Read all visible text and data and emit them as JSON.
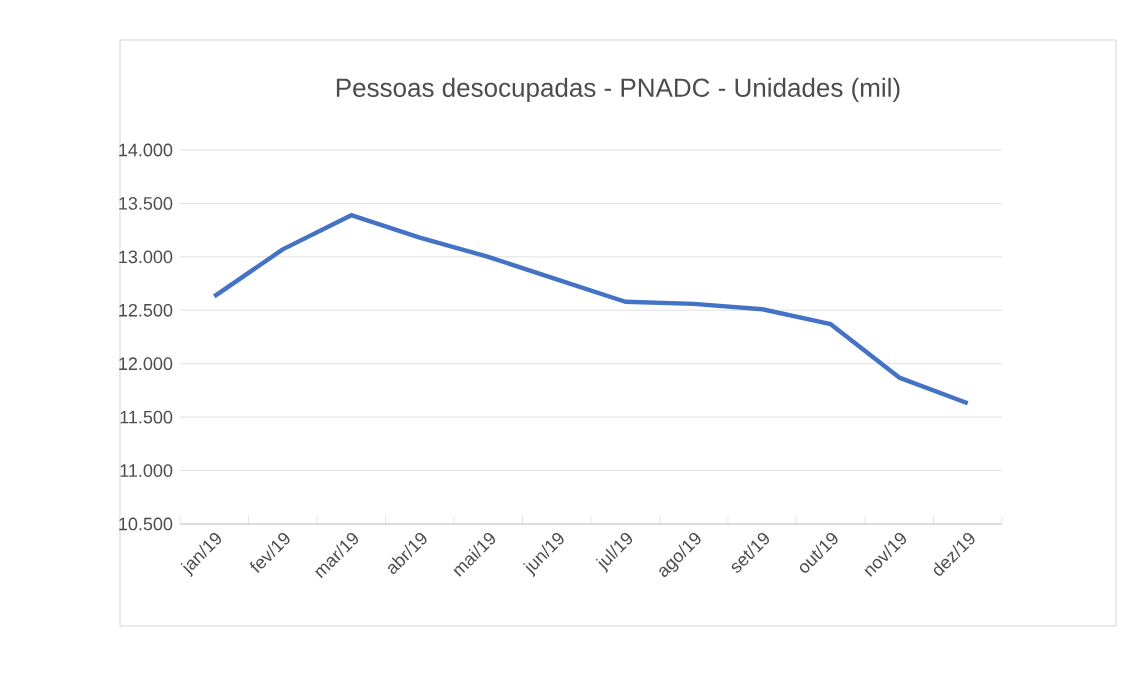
{
  "chart_data": {
    "type": "line",
    "title": "Pessoas desocupadas - PNADC - Unidades (mil)",
    "categories": [
      "jan/19",
      "fev/19",
      "mar/19",
      "abr/19",
      "mai/19",
      "jun/19",
      "jul/19",
      "ago/19",
      "set/19",
      "out/19",
      "nov/19",
      "dez/19"
    ],
    "series": [
      {
        "color": "#4472c4",
        "values": [
          12630,
          13070,
          13390,
          13180,
          13000,
          12790,
          12580,
          12560,
          12510,
          12370,
          11870,
          11630
        ]
      }
    ],
    "ylim": [
      10500,
      14000
    ],
    "yticks": [
      {
        "value": 10500,
        "label": "10.500"
      },
      {
        "value": 11000,
        "label": "11.000"
      },
      {
        "value": 11500,
        "label": "11.500"
      },
      {
        "value": 12000,
        "label": "12.000"
      },
      {
        "value": 12500,
        "label": "12.500"
      },
      {
        "value": 13000,
        "label": "13.000"
      },
      {
        "value": 13500,
        "label": "13.500"
      },
      {
        "value": 14000,
        "label": "14.000"
      }
    ],
    "grid": "y",
    "marker": "none",
    "line_style": "solid"
  }
}
